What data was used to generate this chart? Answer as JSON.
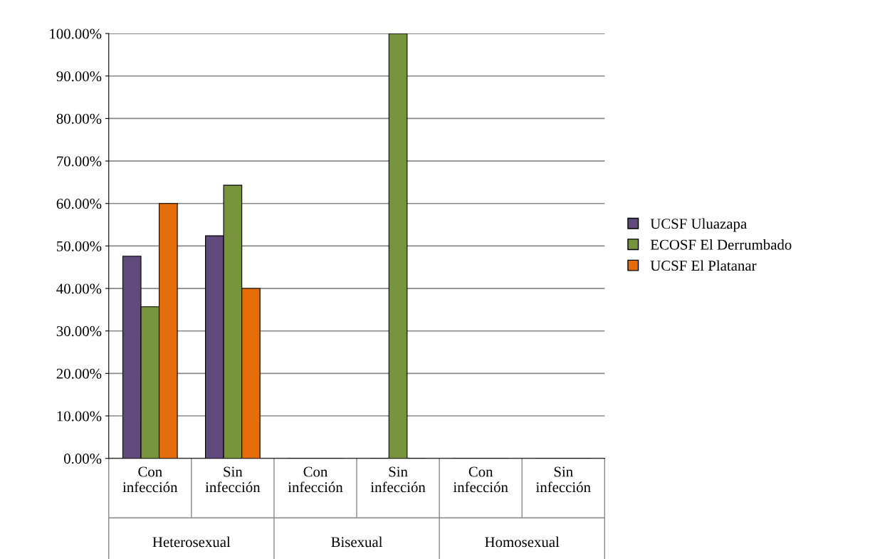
{
  "chart_data": {
    "type": "bar",
    "categories": [
      "Con infección",
      "Sin infección",
      "Con infección",
      "Sin infección",
      "Con infección",
      "Sin infección"
    ],
    "annotations": [
      "Heterosexual",
      "Bisexual",
      "Homosexual"
    ],
    "series": [
      {
        "name": "UCSF Uluazapa",
        "color": "#604a7b",
        "values": [
          47.6,
          52.4,
          0,
          0,
          0,
          0
        ]
      },
      {
        "name": "ECOSF El Derrumbado",
        "color": "#77933c",
        "values": [
          35.7,
          64.3,
          0,
          100,
          0,
          0
        ]
      },
      {
        "name": "UCSF El Platanar",
        "color": "#e46c0a",
        "values": [
          60,
          40,
          0,
          0,
          0,
          0
        ]
      }
    ],
    "ylim": [
      0,
      100
    ],
    "yticks": [
      {
        "value": 0,
        "label": "0.00%"
      },
      {
        "value": 10,
        "label": "10.00%"
      },
      {
        "value": 20,
        "label": "20.00%"
      },
      {
        "value": 30,
        "label": "30.00%"
      },
      {
        "value": 40,
        "label": "40.00%"
      },
      {
        "value": 50,
        "label": "50.00%"
      },
      {
        "value": 60,
        "label": "60.00%"
      },
      {
        "value": 70,
        "label": "70.00%"
      },
      {
        "value": 80,
        "label": "80.00%"
      },
      {
        "value": 90,
        "label": "90.00%"
      },
      {
        "value": 100,
        "label": "100.00%"
      }
    ],
    "grid": "y",
    "legend": "right"
  }
}
